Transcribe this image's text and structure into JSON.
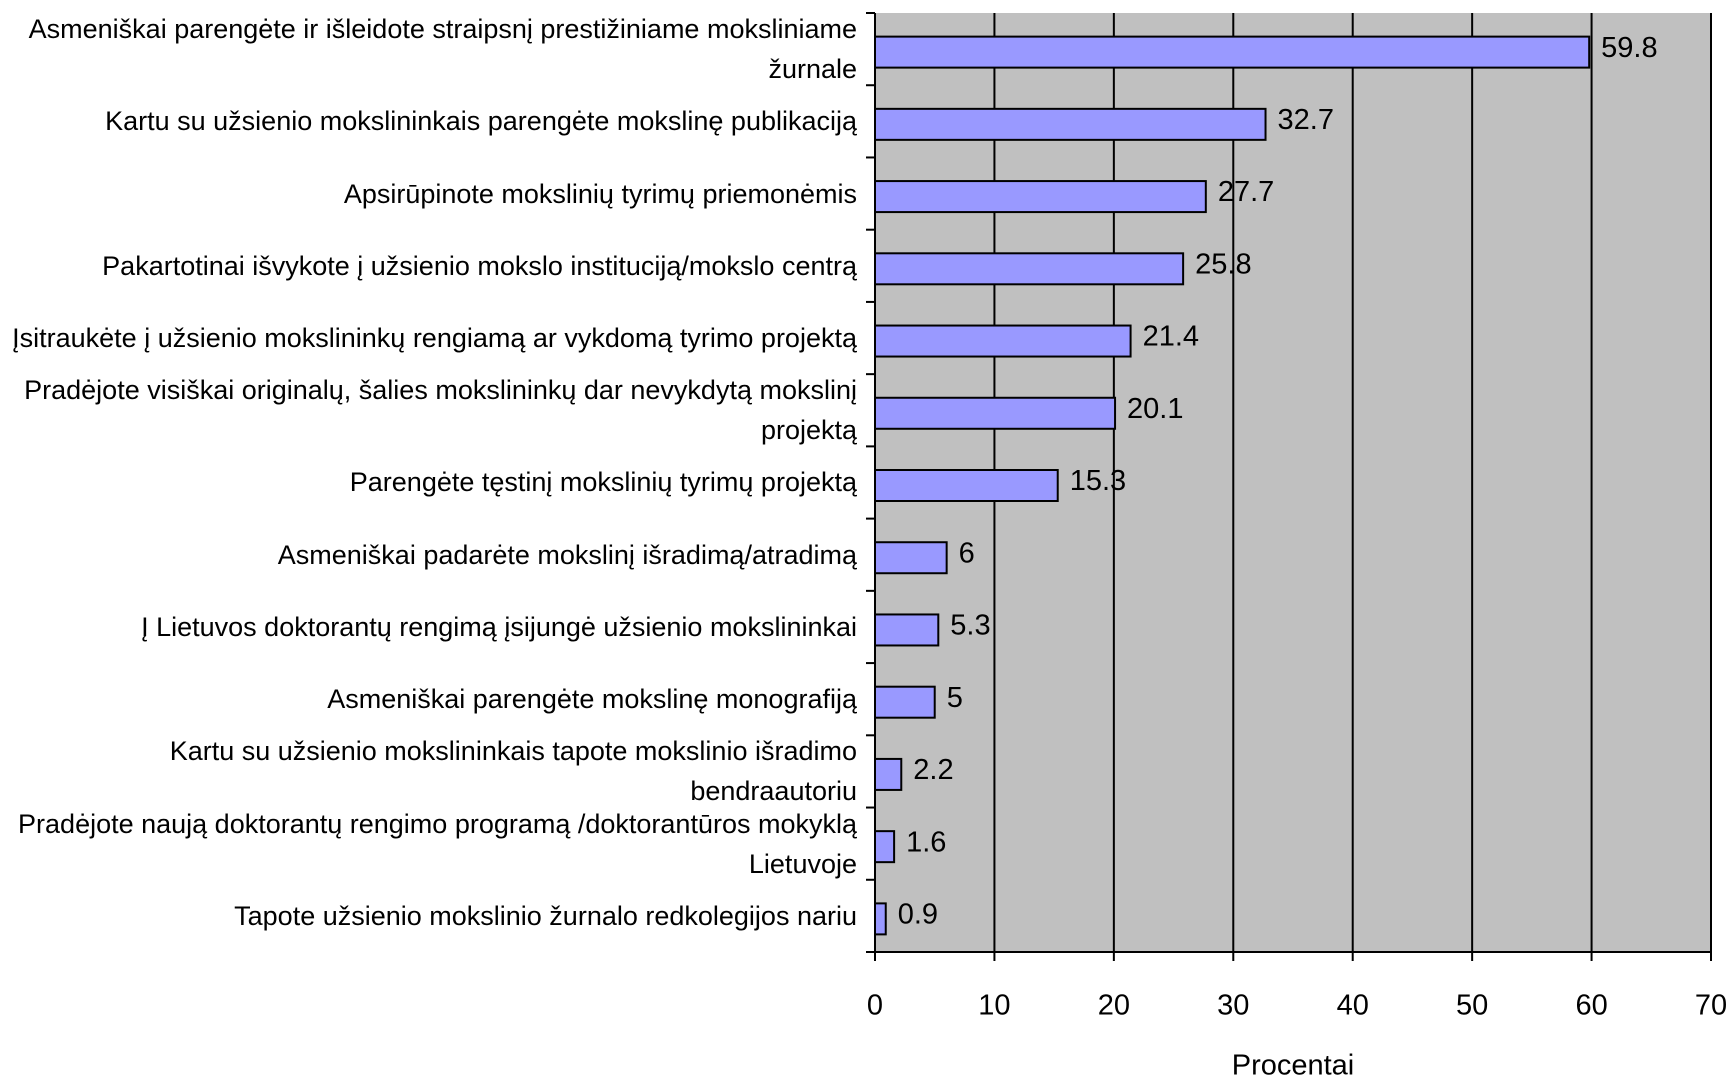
{
  "chart_data": {
    "type": "bar",
    "orientation": "horizontal",
    "categories": [
      "Asmeniškai parengėte ir išleidote  straipsnį prestižiniame moksliniame žurnale",
      "Kartu su užsienio mokslininkais parengėte mokslinę publikaciją",
      "Apsirūpinote mokslinių tyrimų  priemonėmis",
      "Pakartotinai išvykote į užsienio mokslo instituciją/mokslo centrą",
      "Įsitraukėte į užsienio mokslininkų rengiamą ar vykdomą tyrimo projektą",
      "Pradėjote visiškai originalų, šalies mokslininkų dar nevykdytą mokslinį projektą",
      "Parengėte tęstinį mokslinių tyrimų projektą",
      "Asmeniškai padarėte mokslinį išradimą/atradimą",
      "Į Lietuvos doktorantų rengimą įsijungė užsienio mokslininkai",
      "Asmeniškai parengėte mokslinę monografiją",
      "Kartu su užsienio mokslininkais tapote mokslinio išradimo bendraautoriu",
      "Pradėjote naują doktorantų rengimo programą /doktorantūros mokyklą Lietuvoje",
      "Tapote užsienio mokslinio žurnalo redkolegijos nariu"
    ],
    "values": [
      59.8,
      32.7,
      27.7,
      25.8,
      21.4,
      20.1,
      15.3,
      6,
      5.3,
      5,
      2.2,
      1.6,
      0.9
    ],
    "color": "#9999ff",
    "xlabel": "Procentai",
    "xlim": [
      0,
      70
    ],
    "xticks": [
      0,
      10,
      20,
      30,
      40,
      50,
      60,
      70
    ],
    "grid": true
  }
}
